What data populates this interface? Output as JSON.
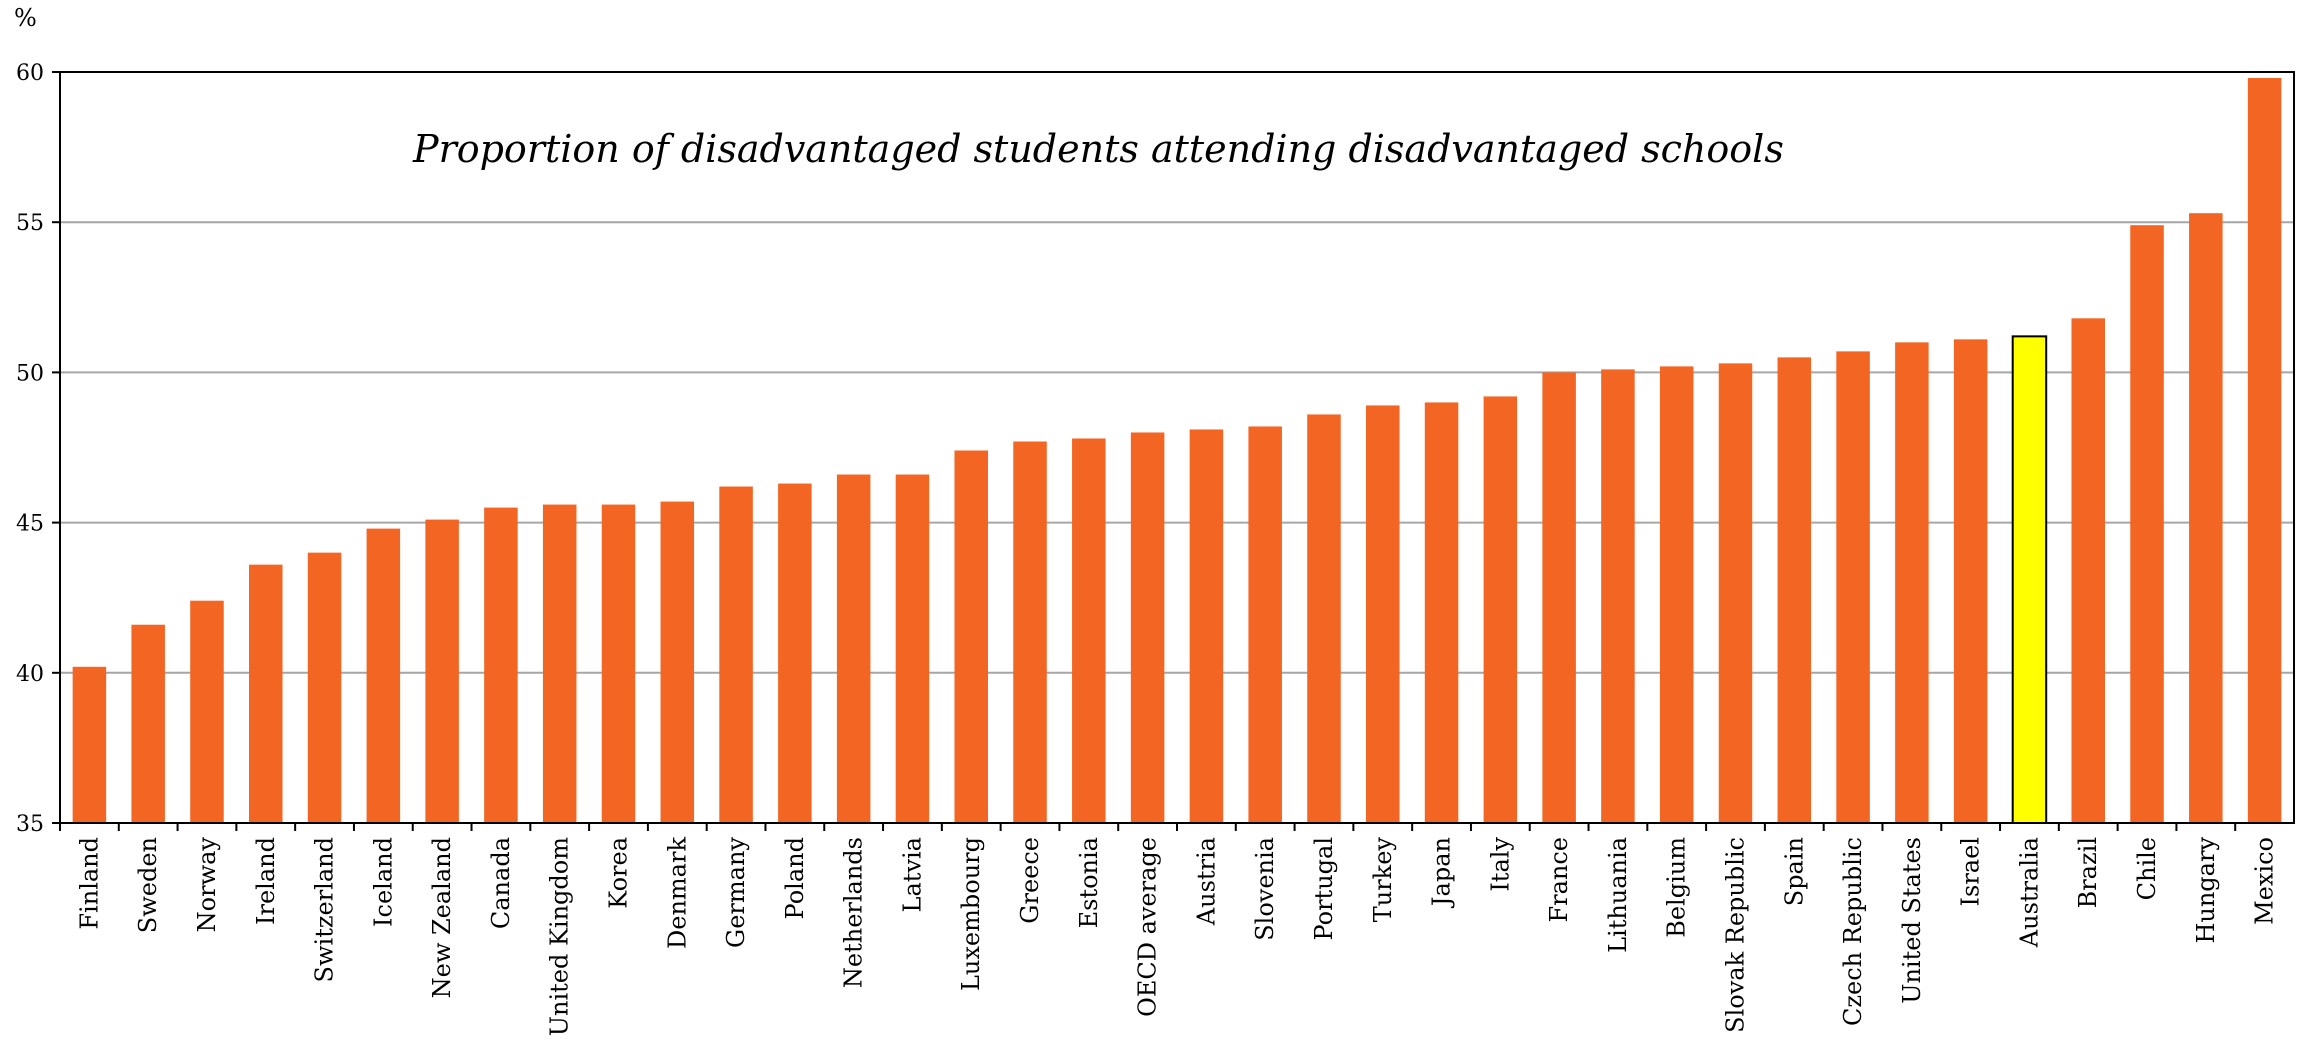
{
  "chart_data": {
    "type": "bar",
    "title": "Proportion of disadvantaged students attending disadvantaged schools",
    "ylabel": "%",
    "xlabel": "",
    "ylim": [
      35,
      60
    ],
    "yticks": [
      35,
      40,
      45,
      50,
      55,
      60
    ],
    "grid": true,
    "bar_color": "#F26522",
    "highlight_color": "#FFFF00",
    "highlight_category": "Australia",
    "categories": [
      "Finland",
      "Sweden",
      "Norway",
      "Ireland",
      "Switzerland",
      "Iceland",
      "New Zealand",
      "Canada",
      "United Kingdom",
      "Korea",
      "Denmark",
      "Germany",
      "Poland",
      "Netherlands",
      "Latvia",
      "Luxembourg",
      "Greece",
      "Estonia",
      "OECD average",
      "Austria",
      "Slovenia",
      "Portugal",
      "Turkey",
      "Japan",
      "Italy",
      "France",
      "Lithuania",
      "Belgium",
      "Slovak Republic",
      "Spain",
      "Czech Republic",
      "United States",
      "Israel",
      "Australia",
      "Brazil",
      "Chile",
      "Hungary",
      "Mexico"
    ],
    "values": [
      40.2,
      41.6,
      42.4,
      43.6,
      44.0,
      44.8,
      45.1,
      45.5,
      45.6,
      45.6,
      45.7,
      46.2,
      46.3,
      46.6,
      46.6,
      47.4,
      47.7,
      47.8,
      48.0,
      48.1,
      48.2,
      48.6,
      48.9,
      49.0,
      49.2,
      50.0,
      50.1,
      50.2,
      50.3,
      50.5,
      50.7,
      51.0,
      51.1,
      51.2,
      51.8,
      54.9,
      55.3,
      59.8
    ]
  }
}
